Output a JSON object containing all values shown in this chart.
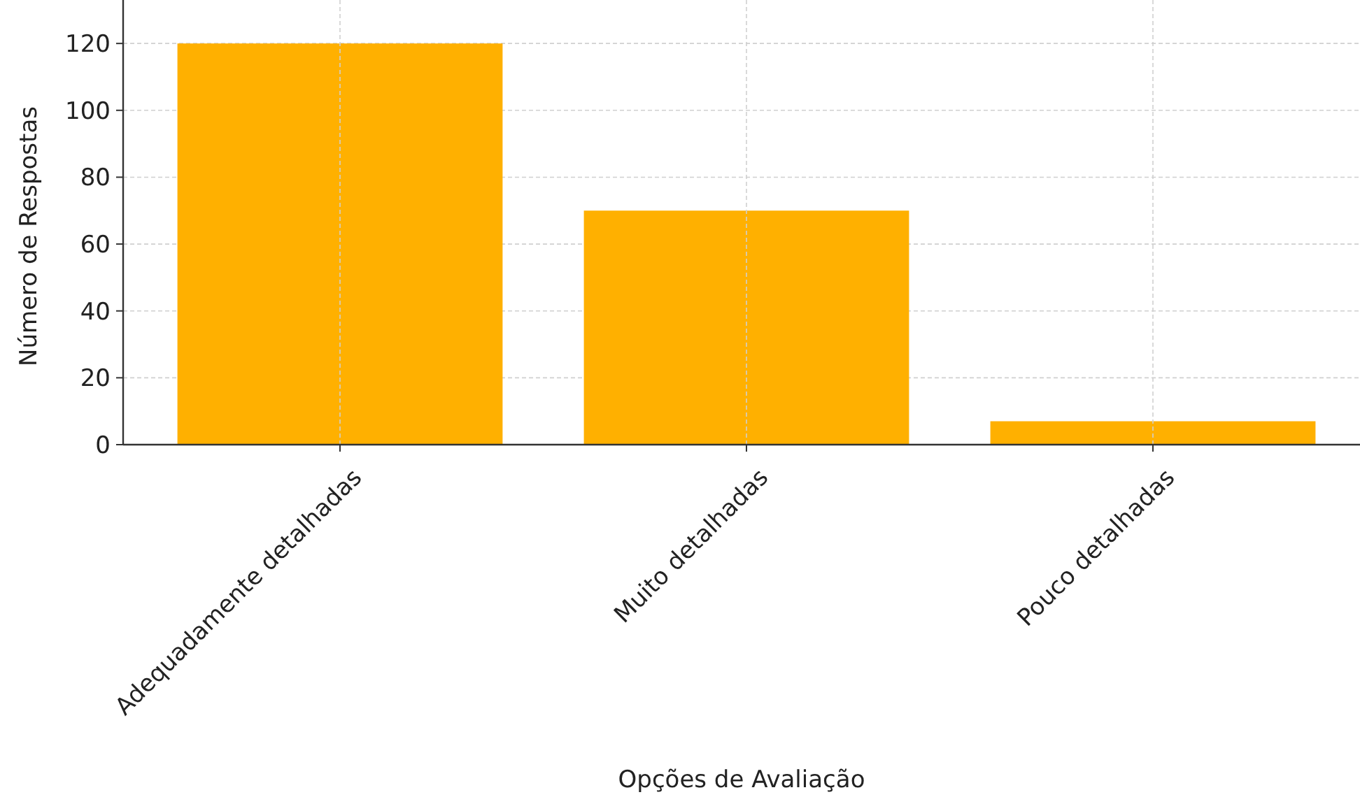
{
  "chart_data": {
    "type": "bar",
    "xlabel": "Opções de Avaliação",
    "ylabel": "Número de Respostas",
    "categories": [
      "Adequadamente detalhadas",
      "Muito detalhadas",
      "Pouco detalhadas"
    ],
    "values": [
      120,
      70,
      7
    ],
    "color": "#ffb000",
    "ylim": [
      0,
      133
    ],
    "yticks": [
      0,
      20,
      40,
      60,
      80,
      100,
      120
    ],
    "grid": true
  }
}
